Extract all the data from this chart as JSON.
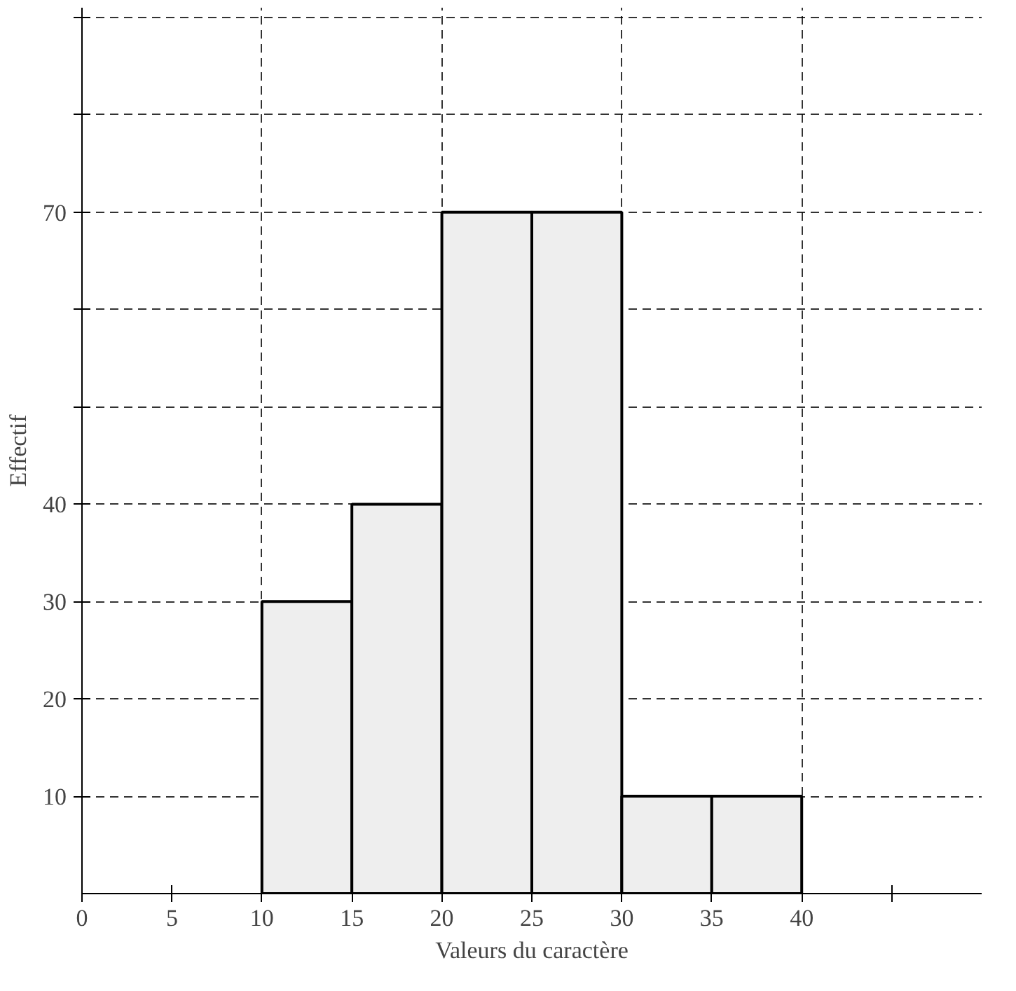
{
  "chart_data": {
    "type": "histogram",
    "xlabel": "Valeurs du caractère",
    "ylabel": "Effectif",
    "bins": [
      10,
      15,
      20,
      25,
      30,
      35,
      40
    ],
    "values": [
      30,
      40,
      70,
      70,
      10,
      10
    ],
    "color": "#eeeeee",
    "xlim": [
      0,
      50
    ],
    "ylim": [
      0,
      91
    ],
    "xticks": [
      0,
      5,
      10,
      15,
      20,
      25,
      30,
      35,
      40,
      {
        "value": 45,
        "label": null
      }
    ],
    "yticks": [
      10,
      20,
      30,
      40,
      {
        "value": 50,
        "label": null
      },
      {
        "value": 60,
        "label": null
      },
      70,
      {
        "value": 80,
        "label": null
      },
      {
        "value": 90,
        "label": null
      }
    ],
    "grid": true
  }
}
